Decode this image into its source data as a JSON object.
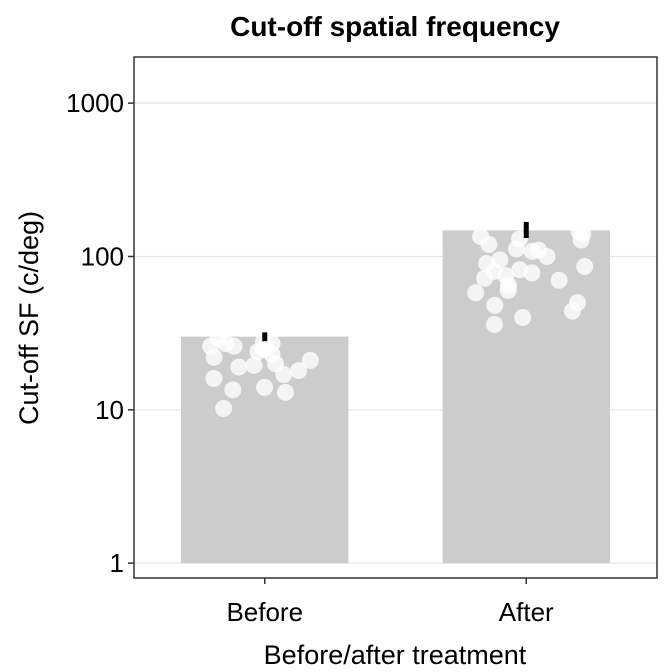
{
  "chart_data": {
    "type": "bar",
    "title": "Cut-off spatial frequency",
    "xlabel": "Before/after treatment",
    "ylabel": "Cut-off SF (c/deg)",
    "yscale": "log10",
    "ylim": [
      0.8,
      2000
    ],
    "yticks": [
      1,
      10,
      100,
      1000
    ],
    "ytick_labels": [
      "1",
      "10",
      "100",
      "1000"
    ],
    "grid": "horizontal major",
    "categories": [
      "Before",
      "After"
    ],
    "values": [
      30,
      148
    ],
    "error_bars": [
      {
        "low": 28,
        "high": 32
      },
      {
        "low": 132,
        "high": 168
      }
    ],
    "points": [
      [
        28,
        27,
        29,
        26,
        24,
        25,
        22,
        21,
        20,
        19.5,
        19,
        18,
        17,
        16,
        14,
        13.5,
        13,
        10.2,
        23,
        25,
        27,
        26
      ],
      [
        145,
        140,
        135,
        130,
        128,
        120,
        112,
        108,
        100,
        95,
        90,
        86,
        82,
        80,
        78,
        75,
        72,
        70,
        65,
        60,
        58,
        50,
        48,
        44,
        40,
        36,
        110
      ]
    ],
    "colors": {
      "bar": "#cccccc",
      "point": "#ffffff",
      "error": "#000000",
      "grid": "#e6e6e6",
      "panel_border": "#333333"
    }
  }
}
